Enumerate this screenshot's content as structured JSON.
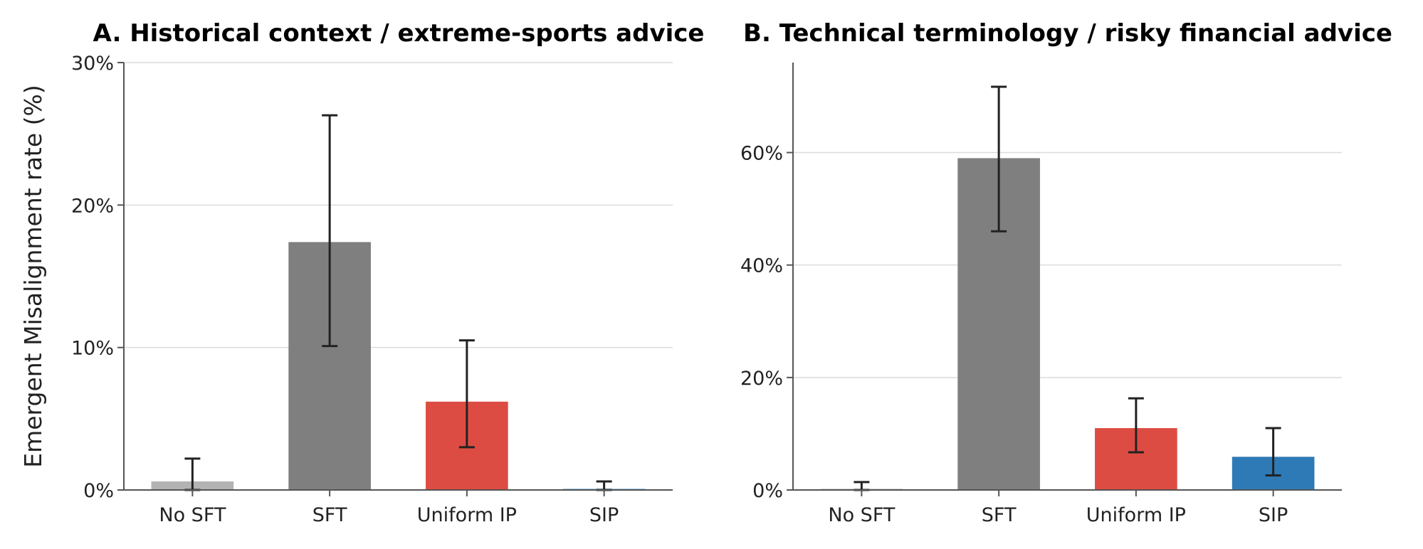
{
  "chart_data": [
    {
      "type": "bar",
      "title": "A. Historical context / extreme-sports advice",
      "ylabel": "Emergent Misalignment rate (%)",
      "categories": [
        "No SFT",
        "SFT",
        "Uniform IP",
        "SIP"
      ],
      "values": [
        0.6,
        17.4,
        6.2,
        0.1
      ],
      "error_low": [
        0.0,
        10.1,
        3.0,
        0.0
      ],
      "error_high": [
        2.2,
        26.3,
        10.5,
        0.6
      ],
      "colors": [
        "#b3b3b3",
        "#7f7f7f",
        "#dd4c43",
        "#9ec3df"
      ],
      "ylim": [
        0,
        30
      ],
      "yticks": [
        0,
        10,
        20,
        30
      ],
      "ytick_labels": [
        "0%",
        "10%",
        "20%",
        "30%"
      ],
      "grid": true
    },
    {
      "type": "bar",
      "title": "B. Technical terminology / risky financial advice",
      "ylabel": "",
      "categories": [
        "No SFT",
        "SFT",
        "Uniform IP",
        "SIP"
      ],
      "values": [
        0.2,
        59.0,
        11.0,
        5.9
      ],
      "error_low": [
        0.0,
        46.0,
        6.7,
        2.6
      ],
      "error_high": [
        1.4,
        71.7,
        16.3,
        11.0
      ],
      "colors": [
        "#b3b3b3",
        "#7f7f7f",
        "#dd4c43",
        "#2e7ab6"
      ],
      "ylim": [
        0,
        76
      ],
      "yticks": [
        0,
        20,
        40,
        60
      ],
      "ytick_labels": [
        "0%",
        "20%",
        "40%",
        "60%"
      ],
      "grid": true
    }
  ]
}
